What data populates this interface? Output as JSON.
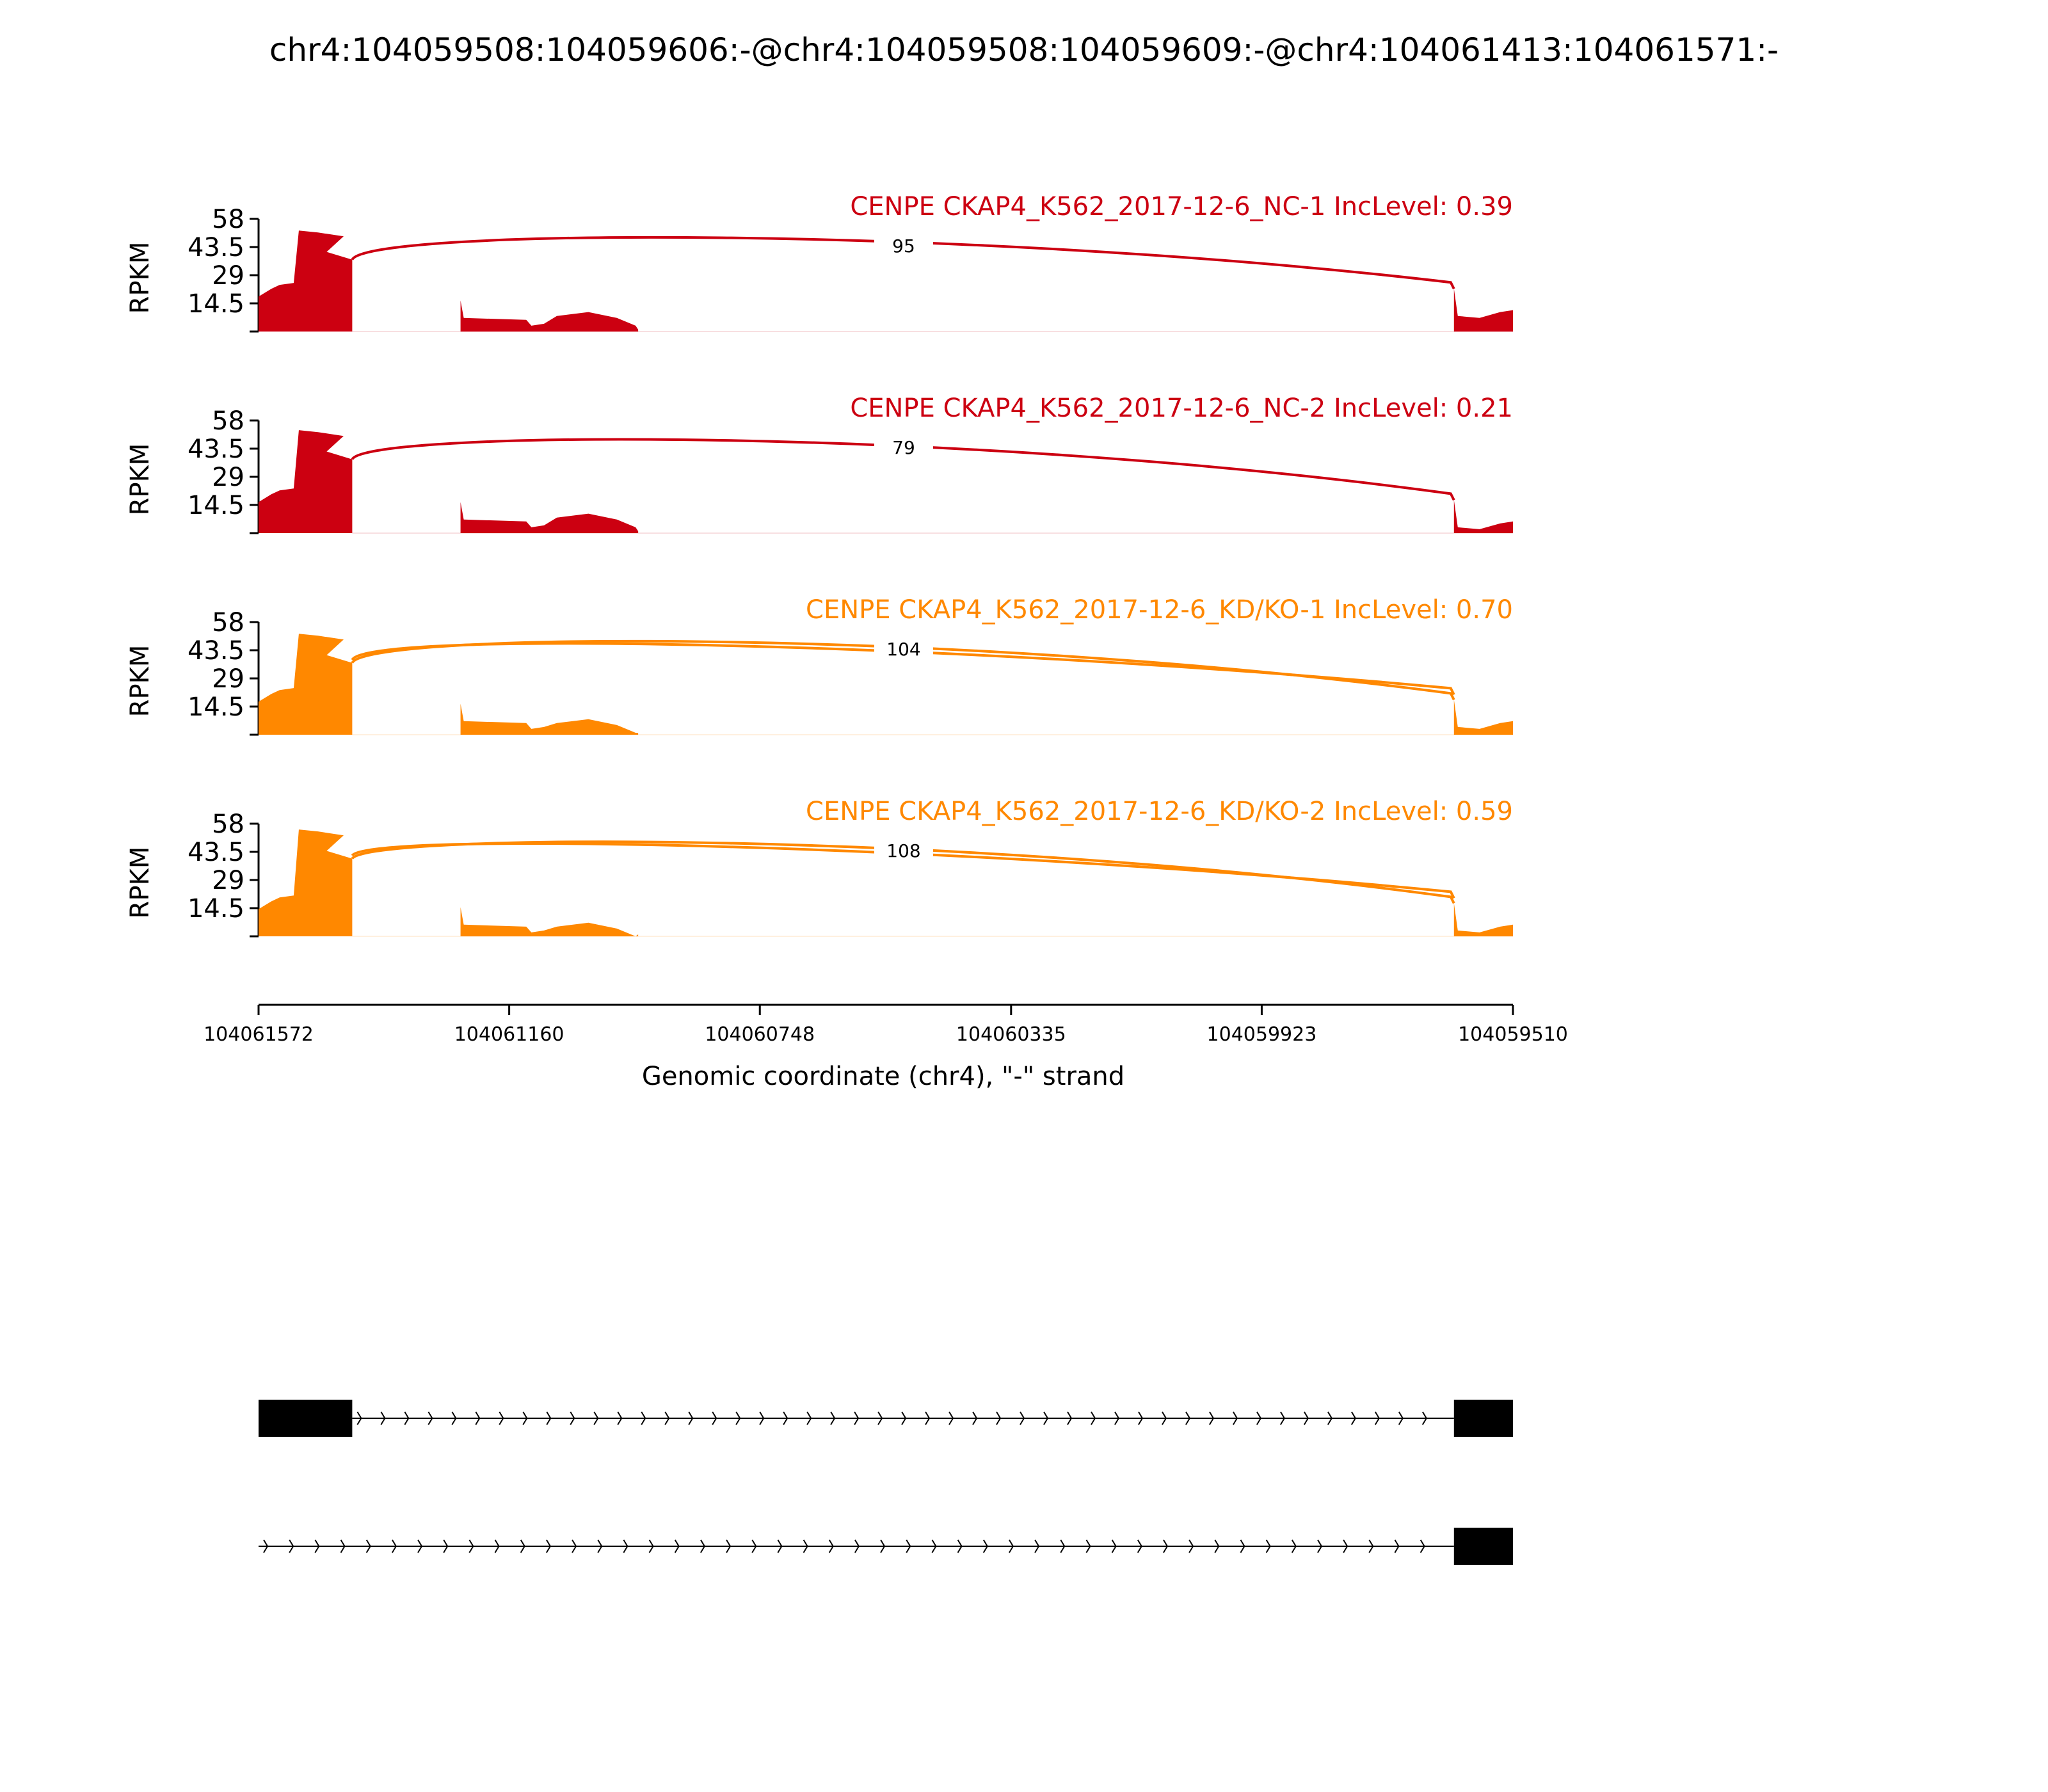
{
  "chart_data": {
    "type": "area",
    "title": "chr4:104059508:104059606:-@chr4:104059508:104059609:-@chr4:104061413:104061571:-",
    "xlabel": "Genomic coordinate (chr4), \"-\" strand",
    "ylabel": "RPKM",
    "x_range": [
      104061572,
      104059510
    ],
    "x_ticks": [
      "104061572",
      "104061160",
      "104060748",
      "104060335",
      "104059923",
      "104059510"
    ],
    "y_range": [
      0,
      58
    ],
    "y_ticks": [
      "14.5",
      "29",
      "43.5",
      "58"
    ],
    "exons": {
      "upstream": [
        104061572,
        104061418
      ],
      "middle": [
        104061240,
        104060948
      ],
      "downstream": [
        104059607,
        104059510
      ]
    },
    "junction": {
      "from": 104061418,
      "to": 104059607
    },
    "panels": [
      {
        "name": "CENPE CKAP4_K562_2017-12-6_NC-1 IncLevel: 0.39",
        "color": "#cc0011",
        "junction_reads": "95",
        "double_arc": false,
        "upstream_low": 24,
        "upstream_high": 52,
        "upstream_end": 37,
        "middle_left": 7,
        "middle_right": 10,
        "downstream": 10
      },
      {
        "name": "CENPE CKAP4_K562_2017-12-6_NC-2 IncLevel: 0.21",
        "color": "#cc0011",
        "junction_reads": "79",
        "double_arc": false,
        "upstream_low": 22,
        "upstream_high": 53,
        "upstream_end": 38,
        "middle_left": 7,
        "middle_right": 10,
        "downstream": 5
      },
      {
        "name": "CENPE CKAP4_K562_2017-12-6_KD/KO-1 IncLevel: 0.70",
        "color": "#ff8800",
        "junction_reads": "104",
        "double_arc": true,
        "upstream_low": 23,
        "upstream_high": 52,
        "upstream_end": 37,
        "middle_left": 7,
        "middle_right": 8,
        "downstream": 6
      },
      {
        "name": "CENPE CKAP4_K562_2017-12-6_KD/KO-2 IncLevel: 0.59",
        "color": "#ff8800",
        "junction_reads": "108",
        "double_arc": true,
        "upstream_low": 20,
        "upstream_high": 55,
        "upstream_end": 40,
        "middle_left": 6,
        "middle_right": 7,
        "downstream": 5
      }
    ],
    "isoforms": [
      {
        "exons": [
          [
            104061572,
            104061418
          ],
          [
            104059607,
            104059510
          ]
        ]
      },
      {
        "exons": [
          [
            104059607,
            104059510
          ]
        ]
      }
    ]
  }
}
